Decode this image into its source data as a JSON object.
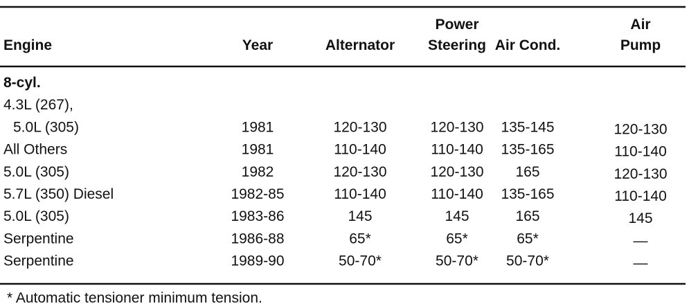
{
  "table": {
    "header": [
      [
        "Engine"
      ],
      [
        "Year"
      ],
      [
        "Alternator"
      ],
      [
        "Power",
        "Steering"
      ],
      [
        "Air Cond."
      ],
      [
        "Air",
        "Pump"
      ]
    ],
    "section": "8-cyl.",
    "rows": [
      [
        [
          "4.3L (267),",
          "5.0L (305)"
        ],
        "1981",
        "120-130",
        "120-130",
        "135-145",
        "120-130"
      ],
      [
        [
          "All Others"
        ],
        "1981",
        "110-140",
        "110-140",
        "135-165",
        "110-140"
      ],
      [
        [
          "5.0L (305)"
        ],
        "1982",
        "120-130",
        "120-130",
        "165",
        "120-130"
      ],
      [
        [
          "5.7L (350) Diesel"
        ],
        "1982-85",
        "110-140",
        "110-140",
        "135-165",
        "110-140"
      ],
      [
        [
          "5.0L (305)"
        ],
        "1983-86",
        "145",
        "145",
        "165",
        "145"
      ],
      [
        [
          "Serpentine"
        ],
        "1986-88",
        "65*",
        "65*",
        "65*",
        "—"
      ],
      [
        [
          "Serpentine"
        ],
        "1989-90",
        "50-70*",
        "50-70*",
        "50-70*",
        "—"
      ]
    ],
    "footnote": "*  Automatic tensioner minimum tension."
  }
}
